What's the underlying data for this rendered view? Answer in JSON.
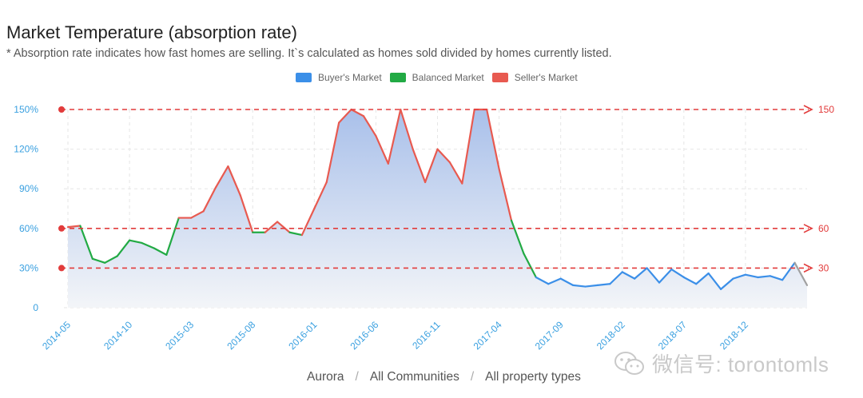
{
  "header": {
    "title": "Market Temperature (absorption rate)",
    "subtitle": "* Absorption rate indicates how fast homes are selling. It`s calculated as homes sold divided by homes currently listed."
  },
  "legend": [
    {
      "label": "Buyer's Market",
      "color": "#3b8fe8"
    },
    {
      "label": "Balanced Market",
      "color": "#22aa44"
    },
    {
      "label": "Seller's Market",
      "color": "#e85a50"
    }
  ],
  "footer": {
    "region": "Aurora",
    "separator": "/",
    "communities": "All Communities",
    "property_types": "All property types"
  },
  "watermark": {
    "text": "微信号: torontomls",
    "icon": "wechat-icon"
  },
  "chart_data": {
    "type": "area",
    "title": "Market Temperature (absorption rate)",
    "xlabel": "",
    "ylabel": "",
    "ylim": [
      0,
      150
    ],
    "y_ticks": [
      {
        "value": 0,
        "label": "0"
      },
      {
        "value": 30,
        "label": "30%"
      },
      {
        "value": 60,
        "label": "60%"
      },
      {
        "value": 90,
        "label": "90%"
      },
      {
        "value": 120,
        "label": "120%"
      },
      {
        "value": 150,
        "label": "150%"
      }
    ],
    "x_tick_labels": [
      "2014-05",
      "2014-10",
      "2015-03",
      "2015-08",
      "2016-01",
      "2016-06",
      "2016-11",
      "2017-04",
      "2017-09",
      "2018-02",
      "2018-07",
      "2018-12"
    ],
    "x_start": "2014-05",
    "x_step": "month",
    "grid": true,
    "legend_position": "top-center",
    "thresholds": [
      {
        "value": 150,
        "label": "150"
      },
      {
        "value": 60,
        "label": "60"
      },
      {
        "value": 30,
        "label": "30"
      }
    ],
    "colors": {
      "buyer": "#3b8fe8",
      "balanced": "#22aa44",
      "seller": "#e85a50",
      "threshold": "#e23b3b",
      "fill_top": "#a9c0ea",
      "fill_bottom": "#f3f5f8",
      "axis_label": "#3aa0e0",
      "last_segment": "#a0a0a0"
    },
    "series": [
      {
        "values": [
          61,
          62,
          37,
          34,
          39,
          51,
          49,
          45,
          40,
          68,
          68,
          73,
          91,
          107,
          85,
          57,
          57,
          65,
          57,
          55,
          75,
          95,
          140,
          155,
          145,
          130,
          109,
          155,
          120,
          95,
          120,
          110,
          94,
          155,
          155,
          105,
          66,
          41,
          23,
          18,
          22,
          17,
          16,
          17,
          18,
          27,
          22,
          30,
          19,
          29,
          23,
          18,
          26,
          14,
          22,
          25,
          23,
          24,
          21,
          34,
          17
        ]
      }
    ]
  }
}
